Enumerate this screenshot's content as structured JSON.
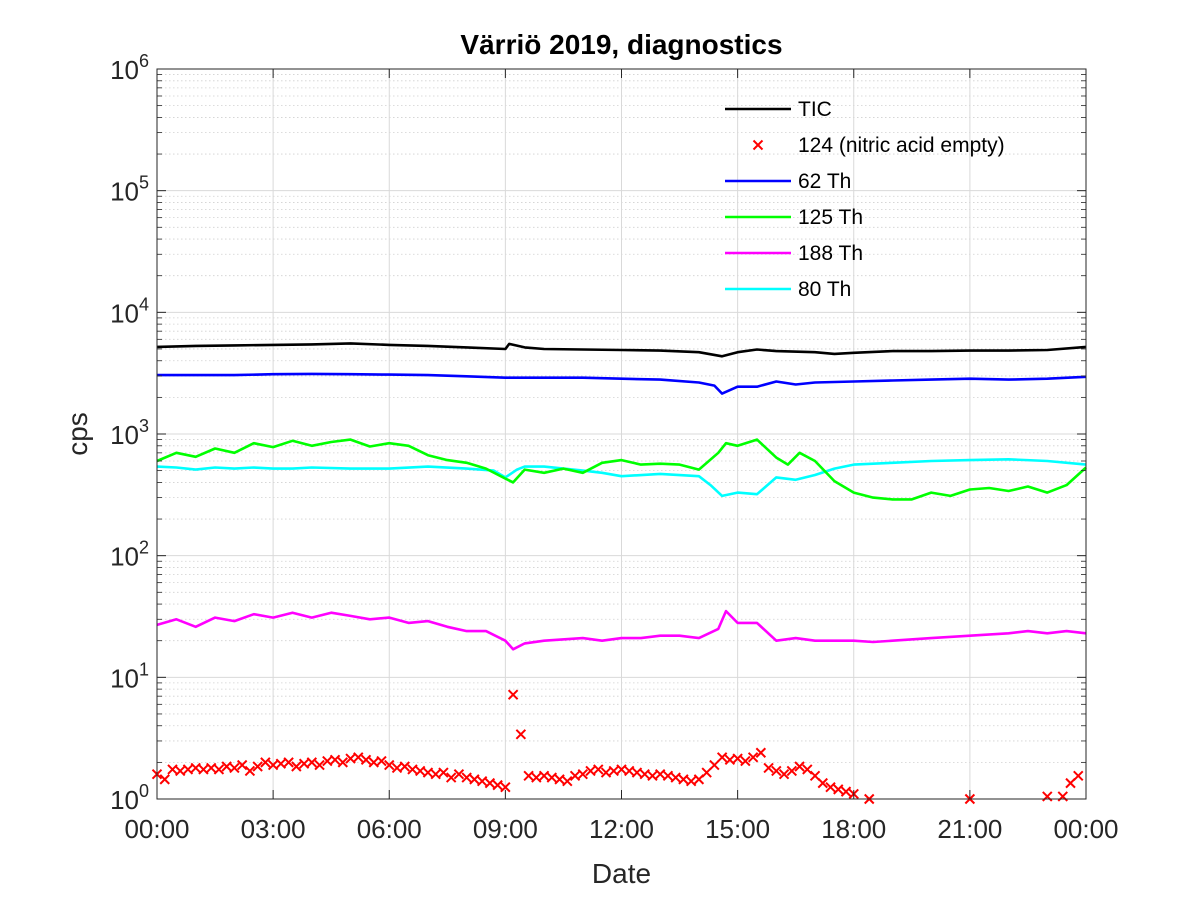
{
  "chart_data": {
    "type": "line",
    "title": "Värriö 2019, diagnostics",
    "xlabel": "Date",
    "ylabel": "cps",
    "yscale": "log",
    "ylim": [
      1,
      1000000
    ],
    "xlim": [
      0,
      24
    ],
    "grid": "on (major and minor)",
    "legend_position": "top-right",
    "x_tick_values": [
      0,
      3,
      6,
      9,
      12,
      15,
      18,
      21,
      24
    ],
    "x_ticks": [
      "00:00",
      "03:00",
      "06:00",
      "09:00",
      "12:00",
      "15:00",
      "18:00",
      "21:00",
      "00:00"
    ],
    "y_ticks": [
      {
        "value": 1,
        "base": "10",
        "exp": "0"
      },
      {
        "value": 10,
        "base": "10",
        "exp": "1"
      },
      {
        "value": 100,
        "base": "10",
        "exp": "2"
      },
      {
        "value": 1000,
        "base": "10",
        "exp": "3"
      },
      {
        "value": 10000,
        "base": "10",
        "exp": "4"
      },
      {
        "value": 100000,
        "base": "10",
        "exp": "5"
      },
      {
        "value": 1000000,
        "base": "10",
        "exp": "6"
      }
    ],
    "series": [
      {
        "name": "TIC",
        "style": "line",
        "color": "#000000",
        "points": [
          [
            0,
            5200
          ],
          [
            1,
            5300
          ],
          [
            2,
            5350
          ],
          [
            3,
            5400
          ],
          [
            4,
            5450
          ],
          [
            5,
            5550
          ],
          [
            6,
            5400
          ],
          [
            7,
            5300
          ],
          [
            8,
            5150
          ],
          [
            9,
            5000
          ],
          [
            9.1,
            5500
          ],
          [
            9.5,
            5150
          ],
          [
            10,
            5000
          ],
          [
            11,
            4950
          ],
          [
            12,
            4900
          ],
          [
            13,
            4850
          ],
          [
            14,
            4700
          ],
          [
            14.6,
            4350
          ],
          [
            15,
            4700
          ],
          [
            15.5,
            4950
          ],
          [
            16,
            4800
          ],
          [
            17,
            4700
          ],
          [
            17.5,
            4550
          ],
          [
            18,
            4650
          ],
          [
            19,
            4800
          ],
          [
            20,
            4800
          ],
          [
            21,
            4850
          ],
          [
            22,
            4850
          ],
          [
            23,
            4900
          ],
          [
            24,
            5200
          ]
        ]
      },
      {
        "name": "124 (nitric acid empty)",
        "style": "marker",
        "color": "#ff0000",
        "points": [
          [
            0,
            1.6
          ],
          [
            0.2,
            1.45
          ],
          [
            0.4,
            1.75
          ],
          [
            0.6,
            1.7
          ],
          [
            0.8,
            1.75
          ],
          [
            1,
            1.8
          ],
          [
            1.2,
            1.75
          ],
          [
            1.4,
            1.8
          ],
          [
            1.6,
            1.75
          ],
          [
            1.8,
            1.85
          ],
          [
            2,
            1.8
          ],
          [
            2.2,
            1.9
          ],
          [
            2.4,
            1.7
          ],
          [
            2.6,
            1.85
          ],
          [
            2.8,
            2.0
          ],
          [
            3,
            1.9
          ],
          [
            3.2,
            1.95
          ],
          [
            3.4,
            2.0
          ],
          [
            3.6,
            1.85
          ],
          [
            3.8,
            1.95
          ],
          [
            4,
            2.0
          ],
          [
            4.2,
            1.9
          ],
          [
            4.4,
            2.05
          ],
          [
            4.6,
            2.1
          ],
          [
            4.8,
            2.0
          ],
          [
            5,
            2.15
          ],
          [
            5.2,
            2.2
          ],
          [
            5.4,
            2.1
          ],
          [
            5.6,
            2.0
          ],
          [
            5.8,
            2.05
          ],
          [
            6,
            1.9
          ],
          [
            6.2,
            1.8
          ],
          [
            6.4,
            1.85
          ],
          [
            6.6,
            1.75
          ],
          [
            6.8,
            1.7
          ],
          [
            7,
            1.65
          ],
          [
            7.2,
            1.6
          ],
          [
            7.4,
            1.65
          ],
          [
            7.6,
            1.5
          ],
          [
            7.8,
            1.6
          ],
          [
            8,
            1.5
          ],
          [
            8.2,
            1.45
          ],
          [
            8.4,
            1.4
          ],
          [
            8.6,
            1.35
          ],
          [
            8.8,
            1.3
          ],
          [
            9,
            1.25
          ],
          [
            9.2,
            7.2
          ],
          [
            9.4,
            3.4
          ],
          [
            9.6,
            1.55
          ],
          [
            9.8,
            1.5
          ],
          [
            10,
            1.55
          ],
          [
            10.2,
            1.5
          ],
          [
            10.4,
            1.45
          ],
          [
            10.6,
            1.4
          ],
          [
            10.8,
            1.55
          ],
          [
            11,
            1.6
          ],
          [
            11.2,
            1.7
          ],
          [
            11.4,
            1.75
          ],
          [
            11.6,
            1.65
          ],
          [
            11.8,
            1.7
          ],
          [
            12,
            1.75
          ],
          [
            12.2,
            1.7
          ],
          [
            12.4,
            1.65
          ],
          [
            12.6,
            1.6
          ],
          [
            12.8,
            1.55
          ],
          [
            13,
            1.6
          ],
          [
            13.2,
            1.55
          ],
          [
            13.4,
            1.5
          ],
          [
            13.6,
            1.45
          ],
          [
            13.8,
            1.4
          ],
          [
            14,
            1.45
          ],
          [
            14.2,
            1.65
          ],
          [
            14.4,
            1.9
          ],
          [
            14.6,
            2.2
          ],
          [
            14.8,
            2.1
          ],
          [
            15,
            2.15
          ],
          [
            15.2,
            2.05
          ],
          [
            15.4,
            2.2
          ],
          [
            15.6,
            2.4
          ],
          [
            15.8,
            1.8
          ],
          [
            16,
            1.7
          ],
          [
            16.2,
            1.6
          ],
          [
            16.4,
            1.7
          ],
          [
            16.6,
            1.85
          ],
          [
            16.8,
            1.75
          ],
          [
            17,
            1.55
          ],
          [
            17.2,
            1.35
          ],
          [
            17.4,
            1.25
          ],
          [
            17.6,
            1.2
          ],
          [
            17.8,
            1.15
          ],
          [
            18,
            1.1
          ],
          [
            18.4,
            1.0
          ],
          [
            21,
            1.0
          ],
          [
            23,
            1.05
          ],
          [
            23.4,
            1.05
          ],
          [
            23.6,
            1.35
          ],
          [
            23.8,
            1.55
          ]
        ]
      },
      {
        "name": "62 Th",
        "style": "line",
        "color": "#0000ff",
        "points": [
          [
            0,
            3050
          ],
          [
            1,
            3050
          ],
          [
            2,
            3050
          ],
          [
            3,
            3100
          ],
          [
            4,
            3120
          ],
          [
            5,
            3100
          ],
          [
            6,
            3080
          ],
          [
            7,
            3050
          ],
          [
            8,
            2980
          ],
          [
            9,
            2900
          ],
          [
            10,
            2900
          ],
          [
            11,
            2900
          ],
          [
            12,
            2850
          ],
          [
            13,
            2800
          ],
          [
            14,
            2650
          ],
          [
            14.4,
            2500
          ],
          [
            14.6,
            2150
          ],
          [
            15,
            2450
          ],
          [
            15.5,
            2450
          ],
          [
            16,
            2700
          ],
          [
            16.5,
            2550
          ],
          [
            17,
            2650
          ],
          [
            18,
            2700
          ],
          [
            19,
            2750
          ],
          [
            20,
            2800
          ],
          [
            21,
            2850
          ],
          [
            22,
            2800
          ],
          [
            23,
            2850
          ],
          [
            24,
            2950
          ]
        ]
      },
      {
        "name": "125 Th",
        "style": "line",
        "color": "#00ff00",
        "points": [
          [
            0,
            600
          ],
          [
            0.5,
            700
          ],
          [
            1,
            650
          ],
          [
            1.5,
            760
          ],
          [
            2,
            700
          ],
          [
            2.5,
            840
          ],
          [
            3,
            780
          ],
          [
            3.5,
            880
          ],
          [
            4,
            800
          ],
          [
            4.5,
            860
          ],
          [
            5,
            900
          ],
          [
            5.5,
            790
          ],
          [
            6,
            840
          ],
          [
            6.5,
            800
          ],
          [
            7,
            670
          ],
          [
            7.5,
            610
          ],
          [
            8,
            580
          ],
          [
            8.5,
            520
          ],
          [
            9,
            430
          ],
          [
            9.2,
            400
          ],
          [
            9.5,
            510
          ],
          [
            10,
            480
          ],
          [
            10.5,
            520
          ],
          [
            11,
            480
          ],
          [
            11.5,
            580
          ],
          [
            12,
            610
          ],
          [
            12.5,
            560
          ],
          [
            13,
            570
          ],
          [
            13.5,
            560
          ],
          [
            14,
            510
          ],
          [
            14.5,
            700
          ],
          [
            14.7,
            840
          ],
          [
            15,
            800
          ],
          [
            15.5,
            900
          ],
          [
            16,
            640
          ],
          [
            16.3,
            560
          ],
          [
            16.6,
            700
          ],
          [
            17,
            600
          ],
          [
            17.5,
            410
          ],
          [
            18,
            330
          ],
          [
            18.5,
            300
          ],
          [
            19,
            290
          ],
          [
            19.5,
            290
          ],
          [
            20,
            330
          ],
          [
            20.5,
            310
          ],
          [
            21,
            350
          ],
          [
            21.5,
            360
          ],
          [
            22,
            340
          ],
          [
            22.5,
            370
          ],
          [
            23,
            330
          ],
          [
            23.5,
            380
          ],
          [
            24,
            530
          ]
        ]
      },
      {
        "name": "188 Th",
        "style": "line",
        "color": "#ff00ff",
        "points": [
          [
            0,
            27
          ],
          [
            0.5,
            30
          ],
          [
            1,
            26
          ],
          [
            1.5,
            31
          ],
          [
            2,
            29
          ],
          [
            2.5,
            33
          ],
          [
            3,
            31
          ],
          [
            3.5,
            34
          ],
          [
            4,
            31
          ],
          [
            4.5,
            34
          ],
          [
            5,
            32
          ],
          [
            5.5,
            30
          ],
          [
            6,
            31
          ],
          [
            6.5,
            28
          ],
          [
            7,
            29
          ],
          [
            7.5,
            26
          ],
          [
            8,
            24
          ],
          [
            8.5,
            24
          ],
          [
            9,
            20
          ],
          [
            9.2,
            17
          ],
          [
            9.5,
            19
          ],
          [
            10,
            20
          ],
          [
            11,
            21
          ],
          [
            11.5,
            20
          ],
          [
            12,
            21
          ],
          [
            12.5,
            21
          ],
          [
            13,
            22
          ],
          [
            13.5,
            22
          ],
          [
            14,
            21
          ],
          [
            14.5,
            25
          ],
          [
            14.7,
            35
          ],
          [
            15,
            28
          ],
          [
            15.5,
            28
          ],
          [
            16,
            20
          ],
          [
            16.5,
            21
          ],
          [
            17,
            20
          ],
          [
            17.5,
            20
          ],
          [
            18,
            20
          ],
          [
            18.5,
            19.5
          ],
          [
            19,
            20
          ],
          [
            20,
            21
          ],
          [
            21,
            22
          ],
          [
            22,
            23
          ],
          [
            22.5,
            24
          ],
          [
            23,
            23
          ],
          [
            23.5,
            24
          ],
          [
            24,
            23
          ]
        ]
      },
      {
        "name": "80 Th",
        "style": "line",
        "color": "#00ffff",
        "points": [
          [
            0,
            540
          ],
          [
            0.5,
            530
          ],
          [
            1,
            510
          ],
          [
            1.5,
            530
          ],
          [
            2,
            520
          ],
          [
            2.5,
            530
          ],
          [
            3,
            520
          ],
          [
            3.5,
            520
          ],
          [
            4,
            530
          ],
          [
            5,
            520
          ],
          [
            6,
            520
          ],
          [
            7,
            540
          ],
          [
            8,
            520
          ],
          [
            8.7,
            500
          ],
          [
            9,
            440
          ],
          [
            9.3,
            510
          ],
          [
            9.5,
            540
          ],
          [
            10,
            540
          ],
          [
            11,
            500
          ],
          [
            11.5,
            480
          ],
          [
            12,
            450
          ],
          [
            13,
            470
          ],
          [
            14,
            450
          ],
          [
            14.3,
            380
          ],
          [
            14.6,
            310
          ],
          [
            15,
            330
          ],
          [
            15.5,
            320
          ],
          [
            16,
            440
          ],
          [
            16.5,
            420
          ],
          [
            17,
            460
          ],
          [
            17.5,
            520
          ],
          [
            18,
            560
          ],
          [
            19,
            580
          ],
          [
            20,
            600
          ],
          [
            21,
            610
          ],
          [
            22,
            620
          ],
          [
            23,
            600
          ],
          [
            24,
            560
          ]
        ]
      }
    ]
  }
}
